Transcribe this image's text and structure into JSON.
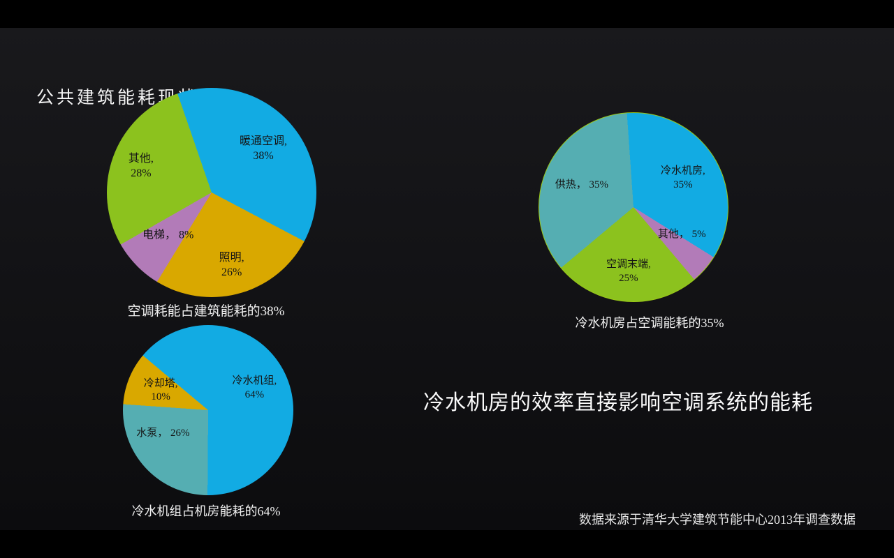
{
  "slide": {
    "title": "公共建筑能耗现状",
    "statement": "冷水机房的效率直接影响空调系统的能耗",
    "source": "数据来源于清华大学建筑节能中心2013年调查数据"
  },
  "colors": {
    "blue": "#12abe3",
    "gold": "#d9a800",
    "purple": "#b27bb8",
    "green": "#8cc21e",
    "teal": "#55aeb2",
    "pie2_outline": "#9ac819",
    "slide_background_top": "#19191c",
    "slide_background_bottom": "#0c0c0e",
    "text_light": "#f0f0f0",
    "label_dark": "#151515"
  },
  "chart_data": [
    {
      "type": "pie",
      "caption": "空调耗能占建筑能耗的38%",
      "start_angle_deg": -19,
      "legend_position": "none",
      "labels_inside": true,
      "segments": [
        {
          "label": "暖通空调",
          "value": 38,
          "color": "#12abe3",
          "label_lines": [
            "暖通空调,",
            "38%"
          ],
          "label_radius": 0.65
        },
        {
          "label": "照明",
          "value": 26,
          "color": "#d9a800",
          "label_lines": [
            "照明,",
            "26%"
          ],
          "label_radius": 0.72
        },
        {
          "label": "电梯",
          "value": 8,
          "color": "#b27bb8",
          "label_lines": [
            "电梯， 8%"
          ],
          "label_radius": 0.58
        },
        {
          "label": "其他",
          "value": 28,
          "color": "#8cc21e",
          "label_lines": [
            "其他,",
            "28%"
          ],
          "label_radius": 0.72
        }
      ]
    },
    {
      "type": "pie",
      "caption": "冷水机房占空调能耗的35%",
      "start_angle_deg": -4,
      "outline_color": "#9ac819",
      "legend_position": "none",
      "labels_inside": true,
      "segments": [
        {
          "label": "冷水机房",
          "value": 35,
          "color": "#12abe3",
          "label_lines": [
            "冷水机房,",
            "35%"
          ],
          "label_radius": 0.6
        },
        {
          "label": "其他",
          "value": 5,
          "color": "#b27bb8",
          "label_lines": [
            "其他， 5%"
          ],
          "label_radius": 0.58,
          "label_angle": 120
        },
        {
          "label": "空调末端",
          "value": 25,
          "color": "#8cc21e",
          "label_lines": [
            "空调末端,",
            "25%"
          ],
          "label_radius": 0.68
        },
        {
          "label": "供热",
          "value": 35,
          "color": "#55aeb2",
          "label_lines": [
            "供热， 35%"
          ],
          "label_radius": 0.6
        }
      ]
    },
    {
      "type": "pie",
      "caption": "冷水机组占机房能耗的64%",
      "start_angle_deg": -50,
      "legend_position": "none",
      "labels_inside": true,
      "segments": [
        {
          "label": "冷水机组",
          "value": 64,
          "color": "#12abe3",
          "label_lines": [
            "冷水机组,",
            "64%"
          ],
          "label_radius": 0.6
        },
        {
          "label": "水泵",
          "value": 26,
          "color": "#55aeb2",
          "label_lines": [
            "水泵， 26%"
          ],
          "label_radius": 0.6,
          "label_angle": 242
        },
        {
          "label": "冷却塔",
          "value": 10,
          "color": "#d9a800",
          "label_lines": [
            "冷却塔,",
            "10%"
          ],
          "label_radius": 0.6
        }
      ]
    }
  ]
}
